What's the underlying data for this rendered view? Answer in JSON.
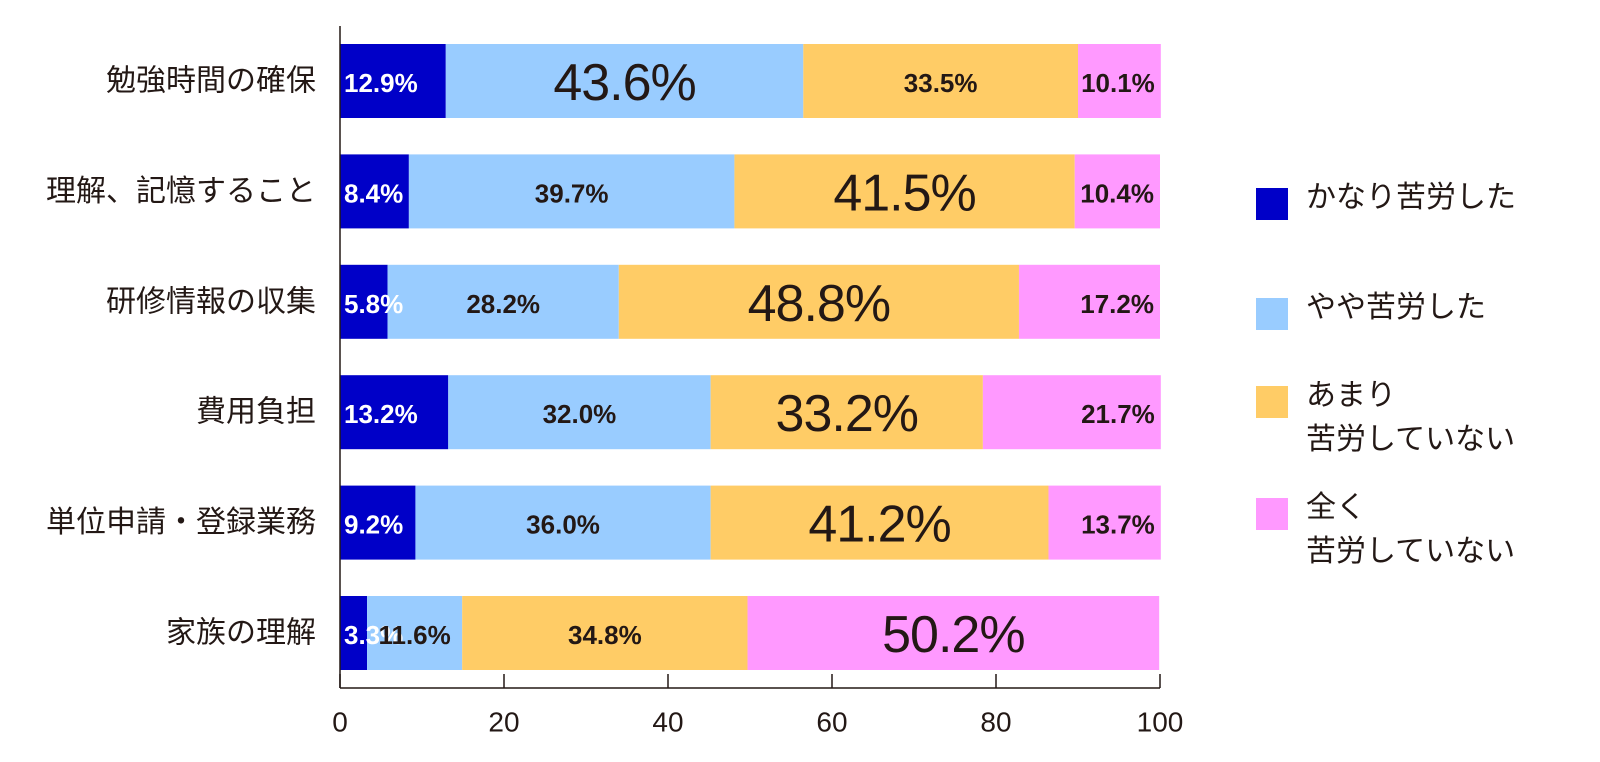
{
  "chart_data": {
    "type": "bar",
    "orientation": "horizontal",
    "stacked": true,
    "categories": [
      "勉強時間の確保",
      "理解、記憶すること",
      "研修情報の収集",
      "費用負担",
      "単位申請・登録業務",
      "家族の理解"
    ],
    "series": [
      {
        "name": "かなり苦労した",
        "color": "#0000c8",
        "values": [
          12.9,
          8.4,
          5.8,
          13.2,
          9.2,
          3.3
        ],
        "labels": [
          "12.9%",
          "8.4%",
          "5.8%",
          "13.2%",
          "9.2%",
          "3.3%"
        ],
        "label_color": "#ffffff"
      },
      {
        "name": "やや苦労した",
        "color": "#99ccff",
        "values": [
          43.6,
          39.7,
          28.2,
          32.0,
          36.0,
          11.6
        ],
        "labels": [
          "43.6%",
          "39.7%",
          "28.2%",
          "32.0%",
          "36.0%",
          "11.6%"
        ],
        "label_color": "#231815"
      },
      {
        "name": "あまり\n苦労していない",
        "color": "#ffcc66",
        "values": [
          33.5,
          41.5,
          48.8,
          33.2,
          41.2,
          34.8
        ],
        "labels": [
          "33.5%",
          "41.5%",
          "48.8%",
          "33.2%",
          "41.2%",
          "34.8%"
        ],
        "label_color": "#231815"
      },
      {
        "name": "全く\n苦労していない",
        "color": "#ff99ff",
        "values": [
          10.1,
          10.4,
          17.2,
          21.7,
          13.7,
          50.2
        ],
        "labels": [
          "10.1%",
          "10.4%",
          "17.2%",
          "21.7%",
          "13.7%",
          "50.2%"
        ],
        "label_color": "#231815"
      }
    ],
    "emphasized_labels": [
      [
        0,
        1
      ],
      [
        1,
        2
      ],
      [
        2,
        2
      ],
      [
        3,
        2
      ],
      [
        4,
        2
      ],
      [
        5,
        3
      ]
    ],
    "xlim": [
      0,
      100
    ],
    "xticks": [
      0,
      20,
      40,
      60,
      80,
      100
    ],
    "legend_position": "right",
    "grid": false
  }
}
